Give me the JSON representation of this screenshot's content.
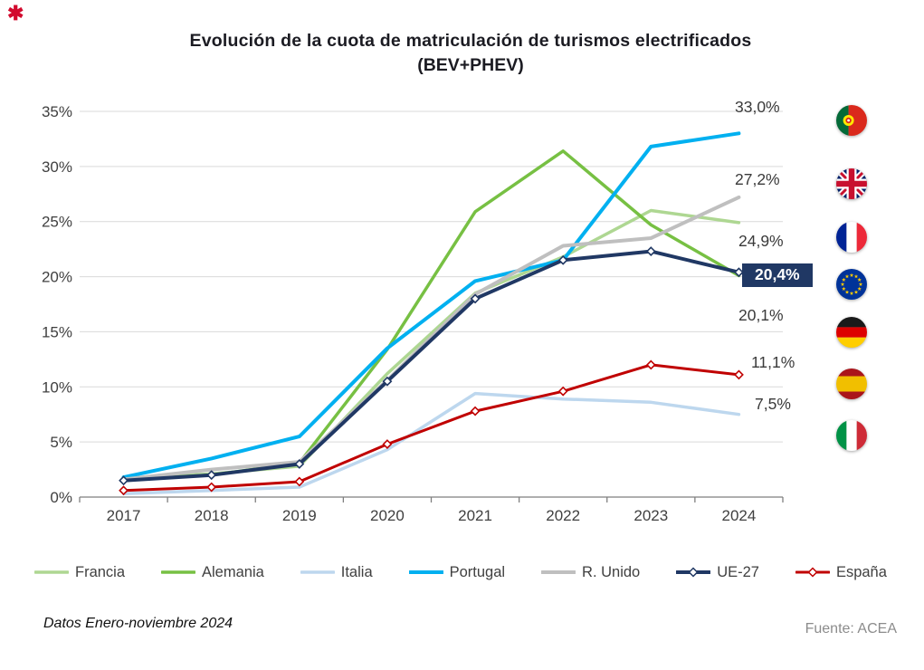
{
  "page": {
    "title": "Evolución de la cuota de matriculación de turismos electrificados",
    "subtitle": "(BEV+PHEV)",
    "footnote": "Datos Enero-noviembre 2024",
    "source": "Fuente: ACEA",
    "logo_mark": "✱"
  },
  "chart_data": {
    "type": "line",
    "title": "Evolución de la cuota de matriculación de turismos electrificados (BEV+PHEV)",
    "categories": [
      "2017",
      "2018",
      "2019",
      "2020",
      "2021",
      "2022",
      "2023",
      "2024"
    ],
    "xlabel": "",
    "ylabel": "",
    "ylim": [
      0,
      35
    ],
    "ytick_step": 5,
    "yticks": [
      "0%",
      "5%",
      "10%",
      "15%",
      "20%",
      "25%",
      "30%",
      "35%"
    ],
    "grid": true,
    "legend_position": "bottom",
    "series": [
      {
        "name": "Francia",
        "color": "#aed792",
        "width": 3.5,
        "marker": "none",
        "values": [
          1.7,
          2.1,
          2.8,
          11.2,
          18.5,
          21.8,
          26.0,
          24.9
        ]
      },
      {
        "name": "Alemania",
        "color": "#77c043",
        "width": 3.5,
        "marker": "none",
        "values": [
          1.6,
          2.0,
          3.1,
          13.4,
          25.9,
          31.4,
          24.7,
          20.1
        ]
      },
      {
        "name": "Italia",
        "color": "#bdd7ee",
        "width": 3.5,
        "marker": "none",
        "values": [
          0.3,
          0.6,
          0.9,
          4.3,
          9.4,
          8.9,
          8.6,
          7.5
        ]
      },
      {
        "name": "Portugal",
        "color": "#00b0f0",
        "width": 4,
        "marker": "none",
        "values": [
          1.8,
          3.5,
          5.5,
          13.5,
          19.6,
          21.5,
          31.8,
          33.0
        ]
      },
      {
        "name": "R. Unido",
        "color": "#bfbfbf",
        "width": 4,
        "marker": "none",
        "values": [
          1.6,
          2.5,
          3.2,
          10.6,
          18.4,
          22.8,
          23.5,
          27.2
        ]
      },
      {
        "name": "UE-27",
        "color": "#203864",
        "width": 4,
        "marker": "diamond",
        "values": [
          1.5,
          2.0,
          3.0,
          10.5,
          18.0,
          21.5,
          22.3,
          20.4
        ]
      },
      {
        "name": "España",
        "color": "#c00000",
        "width": 3,
        "marker": "diamond",
        "values": [
          0.6,
          0.9,
          1.4,
          4.8,
          7.8,
          9.6,
          12.0,
          11.1
        ]
      }
    ],
    "annotations": [
      {
        "label": "33,0%",
        "series": "Portugal",
        "highlighted": false
      },
      {
        "label": "27,2%",
        "series": "R. Unido",
        "highlighted": false
      },
      {
        "label": "24,9%",
        "series": "Francia",
        "highlighted": false
      },
      {
        "label": "20,4%",
        "series": "UE-27",
        "highlighted": true
      },
      {
        "label": "20,1%",
        "series": "Alemania",
        "highlighted": false
      },
      {
        "label": "11,1%",
        "series": "España",
        "highlighted": false
      },
      {
        "label": "7,5%",
        "series": "Italia",
        "highlighted": false
      }
    ]
  },
  "flags": [
    {
      "country": "Portugal",
      "icon": "flag-portugal"
    },
    {
      "country": "Reino Unido",
      "icon": "flag-uk"
    },
    {
      "country": "Francia",
      "icon": "flag-france"
    },
    {
      "country": "Unión Europea",
      "icon": "flag-eu"
    },
    {
      "country": "Alemania",
      "icon": "flag-germany"
    },
    {
      "country": "España",
      "icon": "flag-spain"
    },
    {
      "country": "Italia",
      "icon": "flag-italy"
    }
  ],
  "colors": {
    "highlight_bg": "#203864",
    "grid": "#d9d9d9",
    "axis": "#7f7f7f",
    "text": "#404040"
  }
}
